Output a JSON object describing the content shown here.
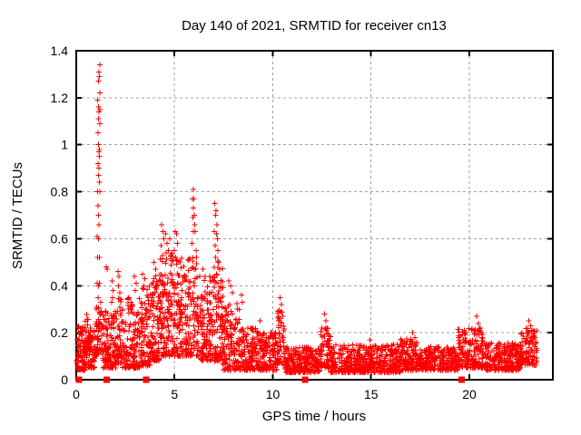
{
  "chart_data": {
    "type": "scatter",
    "title": "Day 140 of 2021, SRMTID for receiver cn13",
    "xlabel": "GPS time / hours",
    "ylabel": "SRMTID / TECUs",
    "xlim": [
      0,
      24.25
    ],
    "ylim": [
      0,
      1.4
    ],
    "x_ticks": [
      0,
      5,
      10,
      15,
      20
    ],
    "x_tick_labels": [
      "0",
      "5",
      "10",
      "15",
      "20"
    ],
    "y_ticks": [
      0,
      0.2,
      0.4,
      0.6,
      0.8,
      1,
      1.2,
      1.4
    ],
    "y_tick_labels": [
      "0",
      "0.2",
      "0.4",
      "0.6",
      "0.8",
      "1",
      "1.2",
      "1.4"
    ],
    "grid": true,
    "legend": "none",
    "colors": {
      "points": "#ff0000",
      "gap_markers": "#ff0000",
      "grid": "#a0a0a0",
      "border": "#000000",
      "background": "#ffffff",
      "text": "#000000"
    },
    "series": [
      {
        "name": "SRMTID",
        "marker": "plus-cross",
        "color": "#ff0000",
        "seed": 140,
        "peak_points": [
          [
            1.2,
            1.34
          ],
          [
            1.16,
            1.31
          ],
          [
            1.18,
            1.29
          ],
          [
            1.14,
            1.27
          ],
          [
            1.21,
            1.22
          ],
          [
            1.09,
            1.19
          ],
          [
            1.13,
            1.16
          ],
          [
            1.19,
            1.15
          ],
          [
            1.15,
            1.14
          ],
          [
            1.14,
            1.11
          ],
          [
            1.2,
            1.09
          ],
          [
            1.11,
            1.05
          ],
          [
            1.13,
            1.0
          ],
          [
            1.17,
            0.98
          ],
          [
            1.15,
            0.97
          ],
          [
            1.18,
            0.95
          ],
          [
            1.11,
            0.92
          ],
          [
            1.16,
            0.9
          ],
          [
            1.13,
            0.87
          ],
          [
            1.17,
            0.84
          ],
          [
            1.08,
            0.8
          ],
          [
            1.19,
            0.8
          ],
          [
            1.12,
            0.74
          ],
          [
            1.14,
            0.7
          ],
          [
            1.16,
            0.66
          ],
          [
            1.06,
            0.61
          ],
          [
            1.14,
            0.6
          ],
          [
            1.09,
            0.52
          ],
          [
            1.17,
            0.52
          ],
          [
            1.07,
            0.41
          ],
          [
            1.13,
            0.4
          ],
          [
            1.18,
            0.41
          ],
          [
            1.11,
            0.35
          ],
          [
            1.24,
            0.33
          ],
          [
            1.02,
            0.3
          ],
          [
            1.52,
            0.48
          ],
          [
            1.58,
            0.47
          ],
          [
            1.82,
            0.42
          ],
          [
            1.87,
            0.38
          ],
          [
            1.85,
            0.35
          ],
          [
            1.79,
            0.33
          ],
          [
            2.12,
            0.46
          ],
          [
            2.18,
            0.44
          ],
          [
            2.15,
            0.4
          ],
          [
            2.21,
            0.37
          ],
          [
            2.95,
            0.44
          ],
          [
            3.05,
            0.41
          ],
          [
            3.0,
            0.38
          ],
          [
            3.38,
            0.45
          ],
          [
            3.48,
            0.43
          ],
          [
            3.44,
            0.4
          ],
          [
            3.95,
            0.5
          ],
          [
            4.05,
            0.47
          ],
          [
            4.35,
            0.66
          ],
          [
            4.4,
            0.63
          ],
          [
            4.46,
            0.6
          ],
          [
            4.55,
            0.62
          ],
          [
            4.61,
            0.58
          ],
          [
            4.75,
            0.6
          ],
          [
            4.31,
            0.57
          ],
          [
            4.68,
            0.55
          ],
          [
            5.03,
            0.63
          ],
          [
            5.1,
            0.62
          ],
          [
            5.16,
            0.58
          ],
          [
            5.0,
            0.55
          ],
          [
            5.95,
            0.81
          ],
          [
            5.92,
            0.77
          ],
          [
            5.99,
            0.77
          ],
          [
            5.96,
            0.73
          ],
          [
            6.01,
            0.7
          ],
          [
            5.93,
            0.69
          ],
          [
            6.03,
            0.66
          ],
          [
            5.97,
            0.63
          ],
          [
            6.06,
            0.63
          ],
          [
            5.9,
            0.58
          ],
          [
            6.09,
            0.55
          ],
          [
            6.13,
            0.52
          ],
          [
            6.45,
            0.47
          ],
          [
            6.55,
            0.44
          ],
          [
            7.05,
            0.75
          ],
          [
            7.11,
            0.72
          ],
          [
            7.08,
            0.7
          ],
          [
            7.16,
            0.66
          ],
          [
            7.02,
            0.63
          ],
          [
            7.13,
            0.62
          ],
          [
            7.19,
            0.6
          ],
          [
            7.06,
            0.57
          ],
          [
            7.21,
            0.55
          ],
          [
            7.1,
            0.52
          ],
          [
            7.26,
            0.5
          ],
          [
            7.3,
            0.47
          ],
          [
            7.76,
            0.42
          ],
          [
            7.86,
            0.4
          ],
          [
            7.95,
            0.37
          ],
          [
            8.4,
            0.36
          ],
          [
            8.46,
            0.33
          ],
          [
            9.35,
            0.25
          ],
          [
            10.36,
            0.35
          ],
          [
            10.44,
            0.32
          ],
          [
            10.42,
            0.29
          ],
          [
            10.5,
            0.27
          ],
          [
            10.31,
            0.25
          ],
          [
            12.63,
            0.28
          ],
          [
            12.7,
            0.25
          ],
          [
            12.75,
            0.22
          ],
          [
            14.95,
            0.17
          ],
          [
            17.12,
            0.2
          ],
          [
            17.22,
            0.18
          ],
          [
            20.38,
            0.27
          ],
          [
            20.47,
            0.24
          ],
          [
            20.55,
            0.22
          ],
          [
            20.6,
            0.2
          ],
          [
            23.02,
            0.25
          ],
          [
            23.12,
            0.23
          ],
          [
            23.18,
            0.21
          ]
        ],
        "noise_band_format": "[x_start_hours, x_end_hours, y_min, y_max, point_count, low_skew_exponent]",
        "noise_bands": [
          [
            0.0,
            0.45,
            0.04,
            0.24,
            80,
            1.5
          ],
          [
            0.45,
            0.95,
            0.05,
            0.28,
            95,
            1.6
          ],
          [
            0.95,
            1.35,
            0.1,
            0.32,
            55,
            1.3
          ],
          [
            1.35,
            2.05,
            0.05,
            0.3,
            120,
            1.8
          ],
          [
            2.05,
            2.35,
            0.07,
            0.36,
            60,
            1.6
          ],
          [
            2.35,
            3.25,
            0.05,
            0.35,
            150,
            1.9
          ],
          [
            3.25,
            3.75,
            0.06,
            0.4,
            100,
            1.7
          ],
          [
            3.75,
            4.25,
            0.08,
            0.45,
            100,
            1.6
          ],
          [
            4.25,
            5.3,
            0.1,
            0.55,
            200,
            1.7
          ],
          [
            5.3,
            6.2,
            0.1,
            0.52,
            150,
            1.7
          ],
          [
            6.2,
            6.95,
            0.08,
            0.44,
            125,
            1.7
          ],
          [
            6.95,
            7.45,
            0.08,
            0.52,
            100,
            1.6
          ],
          [
            7.45,
            8.3,
            0.04,
            0.33,
            140,
            1.8
          ],
          [
            8.3,
            9.3,
            0.04,
            0.22,
            145,
            1.5
          ],
          [
            9.3,
            10.25,
            0.04,
            0.2,
            135,
            1.5
          ],
          [
            10.25,
            10.6,
            0.07,
            0.3,
            50,
            1.4
          ],
          [
            10.6,
            12.4,
            0.03,
            0.14,
            255,
            1.4
          ],
          [
            12.4,
            12.95,
            0.05,
            0.22,
            65,
            1.5
          ],
          [
            12.95,
            16.5,
            0.03,
            0.15,
            480,
            1.6
          ],
          [
            16.5,
            17.4,
            0.04,
            0.18,
            125,
            1.5
          ],
          [
            17.4,
            19.4,
            0.04,
            0.14,
            265,
            1.4
          ],
          [
            19.4,
            20.8,
            0.05,
            0.22,
            185,
            1.7
          ],
          [
            20.8,
            22.6,
            0.04,
            0.16,
            245,
            1.5
          ],
          [
            22.6,
            23.45,
            0.06,
            0.22,
            115,
            1.3
          ]
        ]
      },
      {
        "name": "baseline-gap-markers",
        "marker": "filled-square",
        "color": "#ff0000",
        "points": [
          [
            0.15,
            0
          ],
          [
            1.55,
            0
          ],
          [
            3.55,
            0
          ],
          [
            11.65,
            0
          ],
          [
            19.6,
            0
          ]
        ]
      }
    ]
  }
}
